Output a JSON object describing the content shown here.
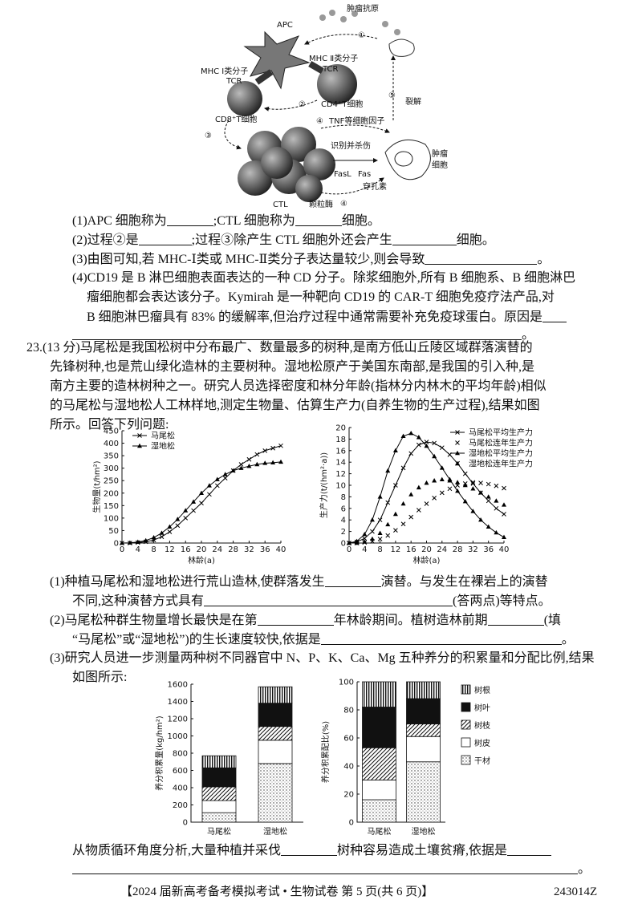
{
  "diagram": {
    "apc": "APC",
    "antigen": "肿瘤抗原",
    "mhc2": "MHC Ⅱ类分子",
    "tcr_a": "TCR",
    "mhc1": "MHC Ⅰ类分子",
    "tcr_b": "TCR",
    "cd4": "CD4⁺T细胞",
    "cd8": "CD8⁺T细胞",
    "tnf": "TNF等细胞因子",
    "kill": "识别并杀伤",
    "tumor_a": "肿瘤",
    "tumor_b": "细胞",
    "fasl": "FasL",
    "fas": "Fas",
    "perforin": "穿孔素",
    "granzyme": "颗粒酶",
    "ctl": "CTL",
    "lysis": "裂解",
    "steps": [
      "①",
      "②",
      "③",
      "④",
      "⑤",
      "④"
    ]
  },
  "q22": {
    "items": [
      [
        "(1)APC 细胞称为",
        ";CTL 细胞称为",
        "细胞。"
      ],
      [
        "(2)过程②是",
        ";过程③除产生 CTL 细胞外还会产生",
        "细胞。"
      ],
      [
        "(3)由图可知,若 MHC-Ⅰ类或 MHC-Ⅱ类分子表达量较少,则会导致",
        "。"
      ],
      [
        "(4)CD19 是 B 淋巴细胞表面表达的一种 CD 分子。除浆细胞外,所有 B 细胞系、B 细胞淋巴",
        "瘤细胞都会表达该分子。Kymirah 是一种靶向 CD19 的 CAR-T 细胞免疫疗法产品,对",
        "B 细胞淋巴瘤具有 83% 的缓解率,但治疗过程中通常需要补充免疫球蛋白。原因是",
        "。"
      ]
    ]
  },
  "q23": {
    "intro": [
      "23.(13 分)马尾松是我国松树中分布最广、数量最多的树种,是南方低山丘陵区域群落演替的",
      "先锋树种,也是荒山绿化造林的主要树种。湿地松原产于美国东南部,是我国的引入种,是",
      "南方主要的造林树种之一。研究人员选择密度和林分年龄(指林分内林木的平均年龄)相似",
      "的马尾松与湿地松人工林样地,测定生物量、估算生产力(自养生物的生产过程),结果如图",
      "所示。回答下列问题:"
    ],
    "sub": [
      [
        "(1)种植马尾松和湿地松进行荒山造林,使群落发生",
        "演替。与发生在裸岩上的演替",
        "不同,这种演替方式具有",
        "(答两点)等特点。"
      ],
      [
        "(2)马尾松种群生物量增长最快是在第",
        "年林龄期间。植树造林前期",
        "(填",
        "“马尾松”或“湿地松”)的生长速度较快,依据是",
        "。"
      ],
      [
        "(3)研究人员进一步测量两种树不同器官中 N、P、K、Ca、Mg 五种养分的积累量和分配比例,结果",
        "如图所示:"
      ]
    ],
    "final": [
      "从物质循环角度分析,大量种植并采伐",
      "树种容易造成土壤贫瘠,依据是",
      "。"
    ]
  },
  "footer": {
    "title": "【2024 届新高考备考模拟考试 • 生物试卷   第 5 页(共 6 页)】",
    "code": "243014Z"
  },
  "chart_data": [
    {
      "type": "line",
      "ylabel": "生物量(t/hm²)",
      "xlabel": "林龄(a)",
      "legend": "upper left",
      "x": [
        0,
        2,
        4,
        6,
        8,
        10,
        12,
        14,
        16,
        18,
        20,
        22,
        24,
        26,
        28,
        30,
        32,
        34,
        36,
        38,
        40
      ],
      "xlim": [
        0,
        40
      ],
      "xticks": [
        0,
        4,
        8,
        12,
        16,
        20,
        24,
        28,
        32,
        36,
        40
      ],
      "ylim": [
        0,
        450
      ],
      "yticks": [
        0,
        50,
        100,
        150,
        200,
        250,
        300,
        350,
        400,
        450
      ],
      "series": [
        {
          "name": "马尾松",
          "color": "#000",
          "marker": "x",
          "line": true,
          "values": [
            0,
            0,
            2,
            5,
            12,
            25,
            45,
            70,
            100,
            130,
            160,
            195,
            230,
            260,
            290,
            315,
            335,
            355,
            370,
            380,
            390
          ]
        },
        {
          "name": "湿地松",
          "color": "#000",
          "marker": "triangle",
          "line": true,
          "values": [
            0,
            1,
            4,
            10,
            22,
            40,
            65,
            95,
            130,
            165,
            200,
            230,
            255,
            275,
            290,
            300,
            308,
            315,
            320,
            322,
            325
          ]
        }
      ]
    },
    {
      "type": "line",
      "ylabel": "生产力(t/(hm²·a))",
      "xlabel": "林龄(a)",
      "legend": "upper right",
      "x": [
        0,
        2,
        4,
        6,
        8,
        10,
        12,
        14,
        16,
        18,
        20,
        22,
        24,
        26,
        28,
        30,
        32,
        34,
        36,
        38,
        40
      ],
      "xlim": [
        0,
        40
      ],
      "xticks": [
        0,
        4,
        8,
        12,
        16,
        20,
        24,
        28,
        32,
        36,
        40
      ],
      "ylim": [
        0,
        20
      ],
      "yticks": [
        0,
        2,
        4,
        6,
        8,
        10,
        12,
        14,
        16,
        18,
        20
      ],
      "series": [
        {
          "name": "马尾松平均生产力",
          "color": "#000",
          "marker": "x",
          "line": true,
          "values": [
            0,
            0.2,
            0.8,
            2,
            4,
            7,
            10,
            13,
            15.5,
            17,
            17.5,
            17.3,
            16.5,
            15.3,
            13.8,
            12,
            10.3,
            8.7,
            7.3,
            6,
            5
          ]
        },
        {
          "name": "马尾松连年生产力",
          "color": "#000",
          "marker": "x",
          "line": false,
          "values": [
            0,
            0,
            0.1,
            0.3,
            0.7,
            1.3,
            2.2,
            3.3,
            4.5,
            5.7,
            6.8,
            7.8,
            8.7,
            9.4,
            10,
            10.3,
            10.5,
            10.4,
            10.2,
            9.9,
            9.5
          ]
        },
        {
          "name": "湿地松平均生产力",
          "color": "#000",
          "marker": "triangle",
          "line": true,
          "values": [
            0,
            0.3,
            1.5,
            4,
            8,
            12.5,
            16,
            18.5,
            19,
            18.3,
            16.8,
            15,
            13,
            11,
            9,
            7.2,
            5.5,
            4,
            2.8,
            1.8,
            1
          ]
        },
        {
          "name": "湿地松连年生产力",
          "color": "#000",
          "marker": "triangle",
          "line": false,
          "values": [
            0,
            0,
            0.2,
            0.7,
            1.7,
            3.2,
            5,
            6.8,
            8.4,
            9.6,
            10.4,
            10.8,
            11,
            10.8,
            10.5,
            10,
            9.4,
            8.7,
            8,
            7.3,
            6.6
          ]
        }
      ]
    },
    {
      "type": "stacked_bar",
      "ylabel": "养分积累量(kg/hm²)",
      "legend": false,
      "categories": [
        "马尾松",
        "湿地松"
      ],
      "ylim": [
        0,
        1600
      ],
      "yticks": [
        0,
        200,
        400,
        600,
        800,
        1000,
        1200,
        1400,
        1600
      ],
      "series": [
        {
          "pattern": "dots",
          "values": [
            110,
            680
          ]
        },
        {
          "pattern": "blank",
          "values": [
            140,
            270
          ]
        },
        {
          "pattern": "hatch",
          "values": [
            160,
            160
          ]
        },
        {
          "pattern": "solid",
          "values": [
            220,
            270
          ]
        },
        {
          "pattern": "vlines",
          "values": [
            140,
            190
          ]
        }
      ]
    },
    {
      "type": "stacked_bar",
      "ylabel": "养分积累配比(%)",
      "legend": "right",
      "categories": [
        "马尾松",
        "湿地松"
      ],
      "ylim": [
        0,
        100
      ],
      "yticks": [
        0,
        20,
        40,
        60,
        80,
        100
      ],
      "series": [
        {
          "name": "干材",
          "pattern": "dots",
          "values": [
            16,
            43
          ]
        },
        {
          "name": "树皮",
          "pattern": "blank",
          "values": [
            14,
            18
          ]
        },
        {
          "name": "树枝",
          "pattern": "hatch",
          "values": [
            23,
            9
          ]
        },
        {
          "name": "树叶",
          "pattern": "solid",
          "values": [
            29,
            18
          ]
        },
        {
          "name": "树根",
          "pattern": "vlines",
          "values": [
            18,
            12
          ]
        }
      ]
    }
  ]
}
